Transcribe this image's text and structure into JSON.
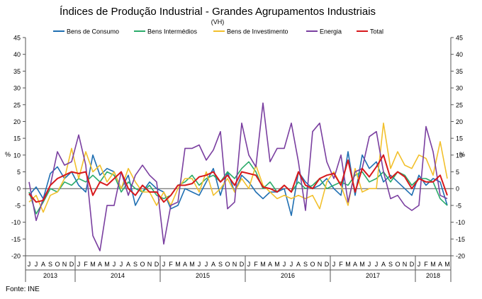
{
  "chart_data": {
    "type": "line",
    "title": "Índices de Produção Industrial - Grandes Agrupamentos Industriais",
    "subtitle": "(VH)",
    "ylabel_left": "%",
    "ylabel_right": "%",
    "ylim": [
      -20,
      45
    ],
    "yticks": [
      -20,
      -15,
      -10,
      -5,
      0,
      5,
      10,
      15,
      20,
      25,
      30,
      35,
      40,
      45
    ],
    "grid": false,
    "legend_position": "top",
    "source": "Fonte: INE",
    "months": [
      "J",
      "J",
      "A",
      "S",
      "O",
      "N",
      "D",
      "J",
      "F",
      "M",
      "A",
      "M",
      "J",
      "J",
      "A",
      "S",
      "O",
      "N",
      "D",
      "J",
      "F",
      "M",
      "A",
      "M",
      "J",
      "J",
      "A",
      "S",
      "O",
      "N",
      "D",
      "J",
      "F",
      "M",
      "A",
      "M",
      "J",
      "J",
      "A",
      "S",
      "O",
      "N",
      "D",
      "J",
      "F",
      "M",
      "A",
      "M",
      "J",
      "J",
      "A",
      "S",
      "O",
      "N",
      "D",
      "J",
      "F",
      "M",
      "A",
      "M"
    ],
    "year_groups": [
      {
        "label": "2013",
        "start": 0,
        "count": 7
      },
      {
        "label": "2014",
        "start": 7,
        "count": 12
      },
      {
        "label": "2015",
        "start": 19,
        "count": 12
      },
      {
        "label": "2016",
        "start": 31,
        "count": 12
      },
      {
        "label": "2017",
        "start": 43,
        "count": 12
      },
      {
        "label": "2018",
        "start": 55,
        "count": 5
      }
    ],
    "series": [
      {
        "name": "Bens de Consumo",
        "color": "#1f6fb2",
        "values": [
          -2,
          0.5,
          -3,
          4.5,
          6.5,
          3,
          5,
          1,
          -1,
          10,
          4,
          6,
          5,
          0,
          4,
          -5,
          -1,
          2,
          0,
          -1,
          -6,
          -5,
          0,
          -1,
          -2,
          2,
          6,
          -2,
          5,
          -1,
          4,
          2,
          -1,
          -3,
          -1,
          -1,
          0,
          -8,
          5,
          2,
          0,
          1,
          3,
          0,
          -2,
          11,
          -2,
          10,
          6,
          8,
          2,
          4,
          2,
          0,
          -2,
          4,
          1,
          3,
          2,
          -5
        ]
      },
      {
        "name": "Bens Intermédios",
        "color": "#2bab6a",
        "values": [
          -1,
          -7.5,
          -4,
          0,
          -1,
          2,
          1,
          3,
          2,
          4,
          2,
          5,
          4,
          -1,
          2,
          0,
          -1,
          1,
          -2,
          -3,
          -2,
          1,
          2,
          4,
          1,
          3,
          4,
          2,
          5,
          3,
          6,
          8,
          5,
          0,
          2,
          -1,
          1,
          -1,
          2,
          0,
          1,
          3,
          0,
          1,
          2,
          1,
          4,
          5,
          2,
          3,
          5,
          2,
          5,
          4,
          1,
          3,
          3,
          2,
          -3,
          -5
        ]
      },
      {
        "name": "Bens de Investimento",
        "color": "#f2c02c",
        "values": [
          -4,
          -2,
          -7,
          -2,
          -1,
          3,
          12,
          3,
          11,
          5,
          7,
          2,
          5,
          0,
          6,
          2,
          -1,
          -1,
          -5,
          -1,
          -5,
          0,
          3,
          3,
          -1,
          5,
          -2,
          0,
          3,
          -1,
          3,
          0,
          7,
          1,
          -1,
          -3,
          -2,
          -3,
          -2,
          -3,
          -2,
          -6,
          2,
          5,
          1,
          -5,
          6,
          -1,
          0,
          0,
          19.5,
          6,
          11,
          7,
          6,
          10,
          9,
          4,
          14,
          3
        ]
      },
      {
        "name": "Energia",
        "color": "#7a3fa0",
        "values": [
          2,
          -9.5,
          -3,
          1,
          11,
          7,
          8,
          16,
          7,
          -14,
          -18.5,
          -5,
          -5,
          5,
          -2,
          4,
          7,
          4,
          2,
          -16.5,
          -5,
          -4,
          12,
          12,
          13,
          8.5,
          11.5,
          17,
          -6,
          -4,
          19.5,
          10,
          6.5,
          25.5,
          8,
          12,
          12,
          19.5,
          8,
          -6.5,
          17,
          19.5,
          8,
          3,
          10,
          -4,
          5,
          6,
          15.5,
          17,
          5,
          -3,
          -2,
          -5,
          -6.5,
          -5,
          18.5,
          11,
          -2,
          -3
        ]
      },
      {
        "name": "Total",
        "color": "#d7191c",
        "values": [
          -1.5,
          -4,
          -3.5,
          1,
          3,
          4,
          5,
          4.5,
          5,
          -2,
          2,
          1,
          3,
          5,
          0,
          -2,
          1,
          -1,
          -1,
          -4,
          -2,
          1,
          1,
          1.5,
          3.5,
          4,
          5,
          2,
          4,
          1,
          5,
          4.5,
          4,
          0.5,
          0,
          -1,
          1,
          -1,
          5,
          1,
          0,
          3,
          4,
          4.5,
          1,
          8.5,
          -1,
          6,
          3.5,
          6.5,
          10,
          3,
          5,
          3.5,
          0,
          3,
          2,
          2,
          4,
          -2
        ]
      }
    ]
  }
}
